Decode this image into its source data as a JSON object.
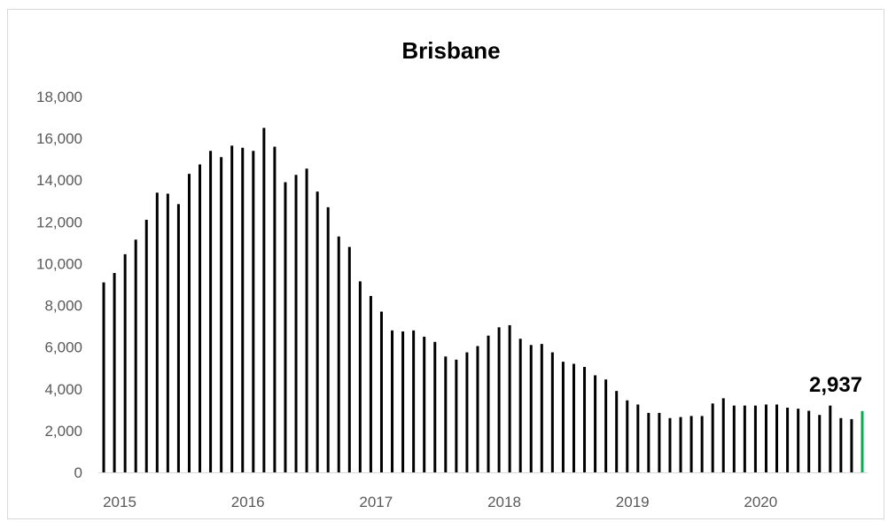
{
  "chart_data": {
    "type": "bar",
    "title": "Brisbane",
    "xlabel": "",
    "ylabel": "",
    "ylim": [
      0,
      18000
    ],
    "y_ticks": [
      "0",
      "2,000",
      "4,000",
      "6,000",
      "8,000",
      "10,000",
      "12,000",
      "14,000",
      "16,000",
      "18,000"
    ],
    "x_tick_labels": [
      "2015",
      "2016",
      "2017",
      "2018",
      "2019",
      "2020"
    ],
    "grid": false,
    "legend": "none",
    "colors": {
      "bar": "#000000",
      "highlight": "#00b050"
    },
    "series": [
      {
        "values": [
          9100,
          9550,
          10450,
          11150,
          12100,
          13400,
          13350,
          12850,
          14300,
          14750,
          15400,
          15100,
          15650,
          15550,
          15400,
          16500,
          15600,
          13900,
          14250,
          14550,
          13450,
          12700,
          11300,
          10800,
          9150,
          8450,
          7700,
          6800,
          6750,
          6800,
          6500,
          6250,
          5550,
          5400,
          5750,
          6050,
          6550,
          6950,
          7050,
          6400,
          6100,
          6150,
          5750,
          5300,
          5200,
          5050,
          4650,
          4450,
          3900,
          3450,
          3250,
          2850,
          2850,
          2600,
          2650,
          2700,
          2700,
          3300,
          3550,
          3200,
          3200,
          3200,
          3250,
          3250,
          3100,
          3050,
          2950,
          2750,
          3200,
          2600,
          2550,
          2937
        ]
      }
    ],
    "highlight_index": 71,
    "data_label": "2,937"
  }
}
